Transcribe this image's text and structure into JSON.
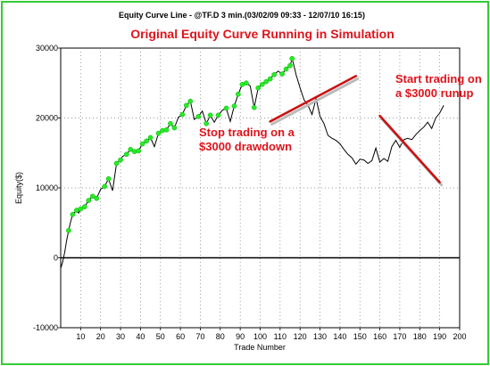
{
  "chart_data": {
    "type": "line",
    "title": "Equity Curve Line - @TF.D 3 min.(03/02/09 09:33 - 12/07/10 16:15)",
    "subtitle": "Original Equity Curve Running in Simulation",
    "xlabel": "Trade Number",
    "ylabel": "Equity($)",
    "xlim": [
      0,
      200
    ],
    "ylim": [
      -10000,
      30000
    ],
    "xticks": [
      10,
      20,
      30,
      40,
      50,
      60,
      70,
      80,
      90,
      100,
      110,
      120,
      130,
      140,
      150,
      160,
      170,
      180,
      190,
      200
    ],
    "yticks": [
      -10000,
      0,
      10000,
      20000,
      30000
    ],
    "ytick_labels": [
      "-10000",
      "0",
      "10000",
      "20000",
      "30000"
    ],
    "grid": true,
    "series": [
      {
        "x": [
          0,
          1,
          2,
          3,
          4,
          5,
          6,
          7,
          8,
          9,
          10,
          12,
          14,
          16,
          18,
          20,
          22,
          24,
          26,
          28,
          30,
          31,
          33,
          35,
          37,
          39,
          41,
          43,
          45,
          47,
          49,
          51,
          53,
          55,
          57,
          59,
          61,
          63,
          65,
          67,
          69,
          71,
          73,
          75,
          77,
          79,
          81,
          83,
          85,
          87,
          89,
          91,
          93,
          95,
          97,
          99,
          101,
          103,
          105,
          107,
          109,
          111,
          113,
          115,
          116,
          117,
          118,
          120,
          122,
          124,
          126,
          128,
          130,
          132,
          134,
          136,
          138,
          140,
          142,
          144,
          146,
          148,
          150,
          152,
          154,
          156,
          158,
          160,
          162,
          164,
          166,
          168,
          170,
          172,
          174,
          176,
          178,
          180,
          182,
          184,
          186,
          188,
          190,
          192
        ],
        "y": [
          -1500,
          -600,
          800,
          2500,
          3900,
          5200,
          6200,
          6500,
          6800,
          6400,
          7000,
          7300,
          8200,
          8800,
          8500,
          9800,
          10200,
          11300,
          9600,
          13500,
          14000,
          14500,
          14800,
          15500,
          15200,
          15300,
          16300,
          16700,
          17200,
          15900,
          17800,
          18200,
          18300,
          19200,
          18600,
          20100,
          20500,
          21800,
          22400,
          19800,
          20200,
          21000,
          19200,
          20400,
          19400,
          20400,
          21100,
          21400,
          19500,
          21700,
          23400,
          24800,
          25000,
          24600,
          21500,
          24300,
          24800,
          25200,
          25600,
          26200,
          26700,
          26300,
          27000,
          27500,
          28500,
          27400,
          26200,
          24300,
          22600,
          21800,
          20500,
          22800,
          20200,
          19200,
          17500,
          17100,
          16800,
          16300,
          15500,
          14800,
          14300,
          13400,
          14100,
          14000,
          13500,
          13900,
          15700,
          13700,
          14200,
          13800,
          15900,
          16800,
          15800,
          16900,
          17100,
          16900,
          17600,
          18200,
          18700,
          19400,
          18500,
          20000,
          20700,
          21800
        ]
      }
    ],
    "markers": {
      "color": "#22ee22",
      "x": [
        4,
        6,
        8,
        10,
        12,
        14,
        16,
        18,
        22,
        24,
        28,
        30,
        33,
        35,
        37,
        39,
        41,
        43,
        45,
        49,
        51,
        53,
        55,
        57,
        61,
        63,
        65,
        69,
        73,
        75,
        79,
        83,
        87,
        89,
        91,
        93,
        97,
        99,
        101,
        103,
        105,
        107,
        111,
        113,
        115,
        116
      ],
      "y": [
        3900,
        6200,
        6800,
        7000,
        7300,
        8200,
        8800,
        8500,
        10200,
        11300,
        13500,
        14000,
        14800,
        15500,
        15200,
        15300,
        16300,
        16700,
        17200,
        17800,
        18200,
        18300,
        19200,
        18600,
        20500,
        21800,
        22400,
        20200,
        19200,
        20400,
        20400,
        21400,
        21700,
        23400,
        24800,
        25000,
        21500,
        24300,
        24800,
        25200,
        25600,
        26200,
        26300,
        27000,
        27500,
        28500
      ]
    },
    "annotations": [
      {
        "lines": [
          "Stop trading on a",
          "$3000 drawdown"
        ],
        "arrow": {
          "x1": 105,
          "y1": 19500,
          "x2": 148,
          "y2": 26000,
          "color": "#cc1111"
        }
      },
      {
        "lines": [
          "Start trading on",
          "a $3000 runup"
        ],
        "arrow": {
          "x1": 160,
          "y1": 20300,
          "x2": 190,
          "y2": 10800,
          "color": "#cc1111"
        }
      }
    ]
  }
}
